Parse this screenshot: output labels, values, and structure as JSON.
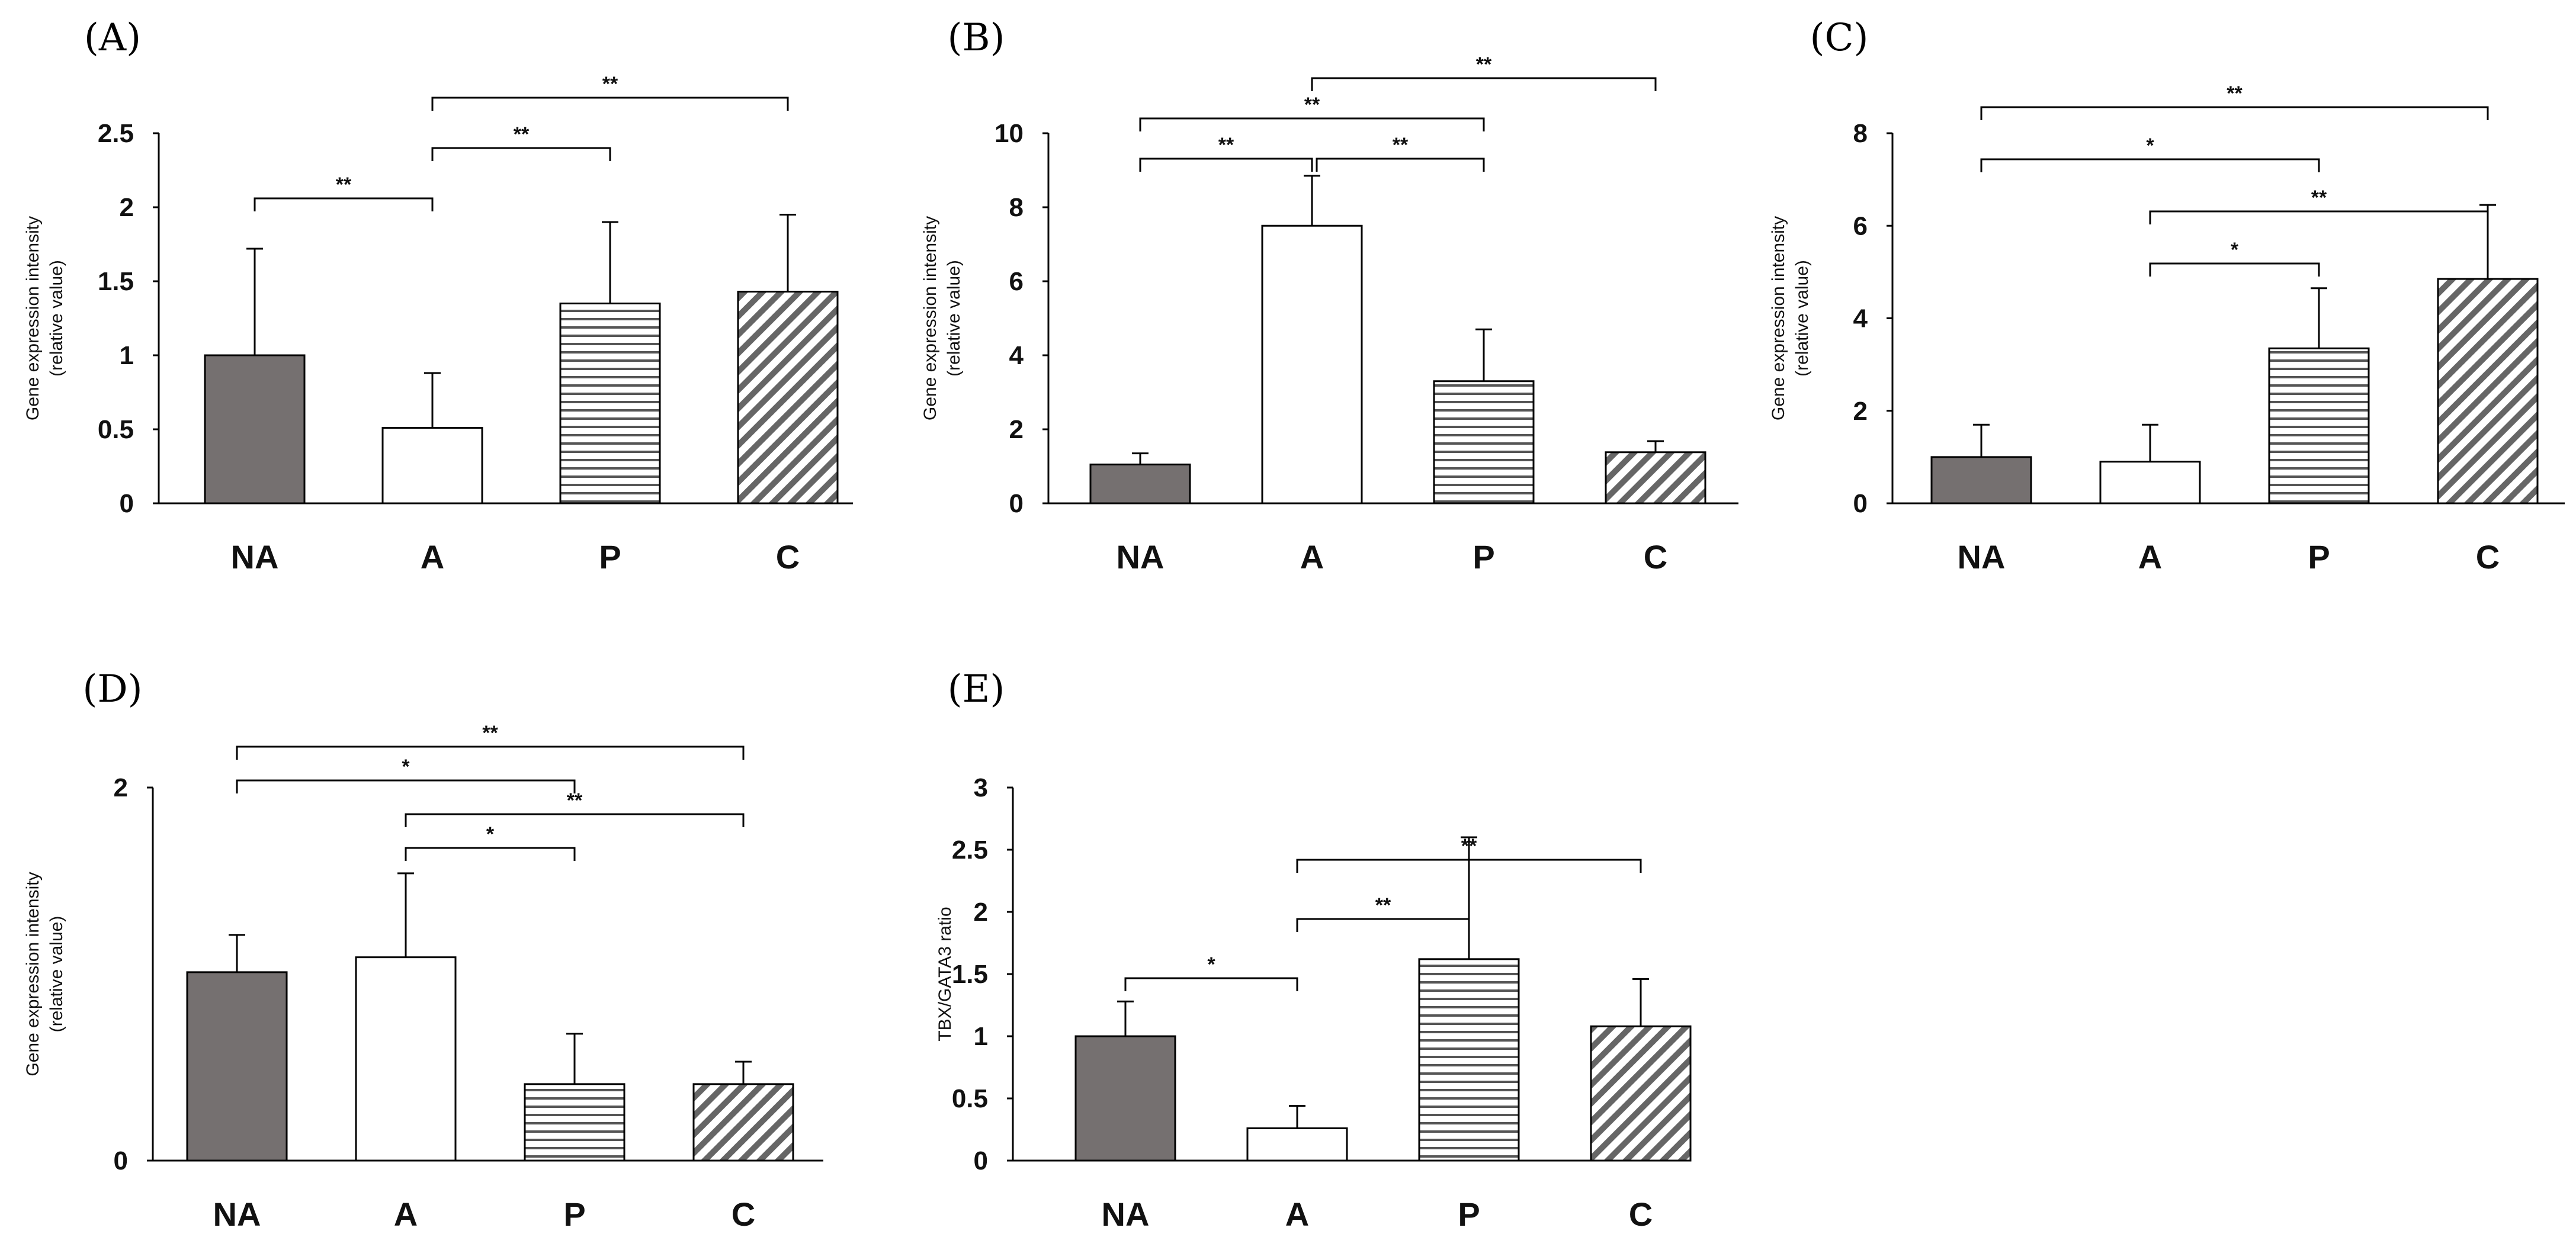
{
  "categories": [
    "NA",
    "A",
    "P",
    "C"
  ],
  "chart_data": [
    {
      "type": "bar",
      "panel_label": "(A)",
      "categories": [
        "NA",
        "A",
        "P",
        "C"
      ],
      "values": [
        1.0,
        0.51,
        1.35,
        1.43
      ],
      "errors": [
        0.72,
        0.37,
        0.55,
        0.52
      ],
      "ylabel": [
        "Gene expression intensity",
        "(relative value)"
      ],
      "ylim": [
        0,
        2.5
      ],
      "yticks": [
        "0",
        "0.5",
        "1",
        "1.5",
        "2",
        "2.5"
      ],
      "ytick_values": [
        0,
        0.5,
        1,
        1.5,
        2,
        2.5
      ],
      "brackets": [
        {
          "from": 0,
          "to": 1,
          "level": 0,
          "label": "**"
        },
        {
          "from": 1,
          "to": 2,
          "level": 1,
          "label": "**"
        },
        {
          "from": 1,
          "to": 3,
          "level": 2,
          "label": "**"
        }
      ]
    },
    {
      "type": "bar",
      "panel_label": "(B)",
      "categories": [
        "NA",
        "A",
        "P",
        "C"
      ],
      "values": [
        1.05,
        7.5,
        3.3,
        1.38
      ],
      "errors": [
        0.3,
        1.35,
        1.4,
        0.3
      ],
      "ylabel": [
        "Gene expression intensity",
        "(relative value)"
      ],
      "ylim": [
        0,
        10
      ],
      "yticks": [
        "0",
        "2",
        "4",
        "6",
        "8",
        "10"
      ],
      "ytick_values": [
        0,
        2,
        4,
        6,
        8,
        10
      ],
      "brackets": [
        {
          "from": 0,
          "to": 1,
          "level": 0,
          "label": "**"
        },
        {
          "from": 1,
          "to": 2,
          "level": 0,
          "label": "**"
        },
        {
          "from": 0,
          "to": 2,
          "level": 1,
          "label": "**"
        },
        {
          "from": 1,
          "to": 3,
          "level": 2,
          "label": "**"
        }
      ]
    },
    {
      "type": "bar",
      "panel_label": "(C)",
      "categories": [
        "NA",
        "A",
        "P",
        "C"
      ],
      "values": [
        1.0,
        0.9,
        3.35,
        4.85
      ],
      "errors": [
        0.7,
        0.8,
        1.3,
        1.6
      ],
      "ylabel": [
        "Gene expression intensity",
        "(relative value)"
      ],
      "ylim": [
        0,
        8
      ],
      "yticks": [
        "0",
        "2",
        "4",
        "6",
        "8"
      ],
      "ytick_values": [
        0,
        2,
        4,
        6,
        8
      ],
      "brackets": [
        {
          "from": 1,
          "to": 2,
          "level": 0,
          "label": "*"
        },
        {
          "from": 1,
          "to": 3,
          "level": 1,
          "label": "**"
        },
        {
          "from": 0,
          "to": 2,
          "level": 2,
          "label": "*"
        },
        {
          "from": 0,
          "to": 3,
          "level": 3,
          "label": "**"
        }
      ]
    },
    {
      "type": "bar",
      "panel_label": "(D)",
      "categories": [
        "NA",
        "A",
        "P",
        "C"
      ],
      "values": [
        1.01,
        1.09,
        0.41,
        0.41
      ],
      "errors": [
        0.2,
        0.45,
        0.27,
        0.12
      ],
      "ylabel": [
        "Gene expression intensity",
        "(relative value)"
      ],
      "ylim": [
        0,
        2
      ],
      "yticks": [
        "0",
        "2"
      ],
      "ytick_values": [
        0,
        2
      ],
      "brackets": [
        {
          "from": 1,
          "to": 2,
          "level": 0,
          "label": "*"
        },
        {
          "from": 1,
          "to": 3,
          "level": 1,
          "label": "**"
        },
        {
          "from": 0,
          "to": 2,
          "level": 2,
          "label": "*"
        },
        {
          "from": 0,
          "to": 3,
          "level": 3,
          "label": "**"
        }
      ]
    },
    {
      "type": "bar",
      "panel_label": "(E)",
      "categories": [
        "NA",
        "A",
        "P",
        "C"
      ],
      "values": [
        1.0,
        0.26,
        1.62,
        1.08
      ],
      "errors": [
        0.28,
        0.18,
        0.98,
        0.38
      ],
      "ylabel": [
        "TBX/GATA3 ratio"
      ],
      "ylim": [
        0,
        3
      ],
      "yticks": [
        "0",
        "0.5",
        "1",
        "1.5",
        "2",
        "2.5",
        "3"
      ],
      "ytick_values": [
        0,
        0.5,
        1,
        1.5,
        2,
        2.5,
        3
      ],
      "brackets": [
        {
          "from": 0,
          "to": 1,
          "level": 0,
          "label": "*"
        },
        {
          "from": 1,
          "to": 2,
          "level": 1,
          "label": "**"
        },
        {
          "from": 1,
          "to": 3,
          "level": 2,
          "label": "**"
        }
      ]
    }
  ],
  "colors": {
    "NA": "#757070",
    "A": "#ffffff",
    "P_stripe": "#555555",
    "C_stripe": "#666666",
    "outline": "#000000"
  }
}
